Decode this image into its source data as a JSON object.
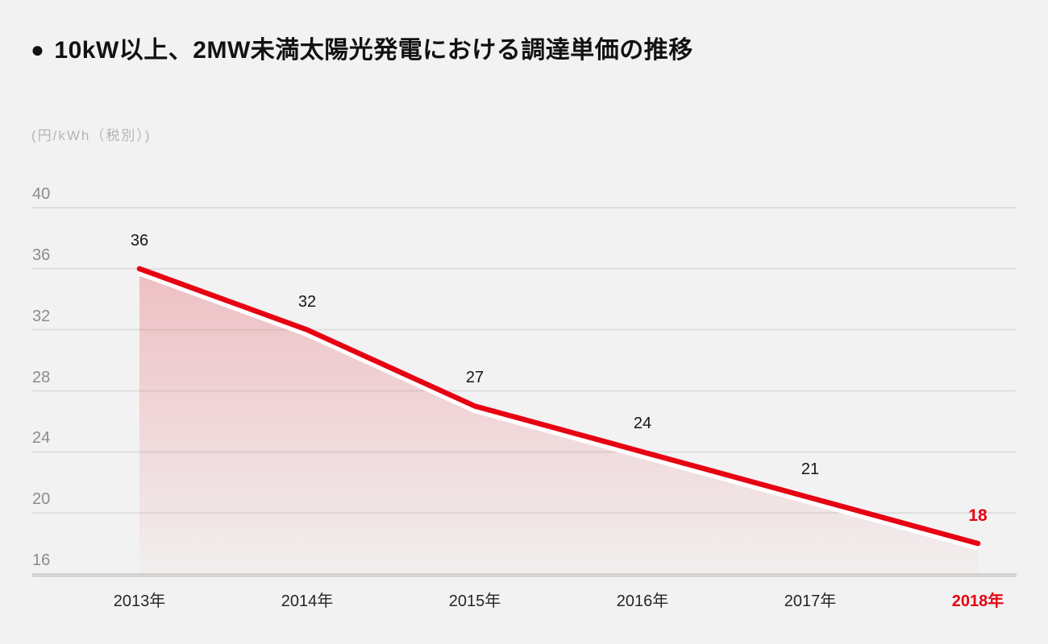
{
  "page": {
    "background": "#f2f2f2"
  },
  "title": {
    "bullet": "●",
    "text": "10kW以上、2MW未満太陽光発電における調達単価の推移"
  },
  "chart_data": {
    "type": "area",
    "title": "10kW以上、2MW未満太陽光発電における調達単価の推移",
    "ylabel": "(円/kWh（税別）)",
    "xlabel": "",
    "categories": [
      "2013年",
      "2014年",
      "2015年",
      "2016年",
      "2017年",
      "2018年"
    ],
    "values": [
      36,
      32,
      27,
      24,
      21,
      18
    ],
    "yticks": [
      40,
      36,
      32,
      28,
      24,
      20,
      16
    ],
    "ylim": [
      16,
      40
    ],
    "grid": "horizontal",
    "legend": "none",
    "highlight_last_index": 5,
    "colors": {
      "line": "#e60012",
      "highlight": "#e60012",
      "under_stroke": "#ffffff",
      "area_top": "rgba(226,50,64,0.26)",
      "area_bottom": "rgba(226,50,64,0.02)",
      "grid": "#dedede",
      "axis_baseline": "#d6d3d3",
      "tick_text": "#8f8a8a",
      "year_text": "#2a2525",
      "value_text": "#181414",
      "unit_text": "#b8b3b3",
      "title_text": "#141111"
    }
  }
}
